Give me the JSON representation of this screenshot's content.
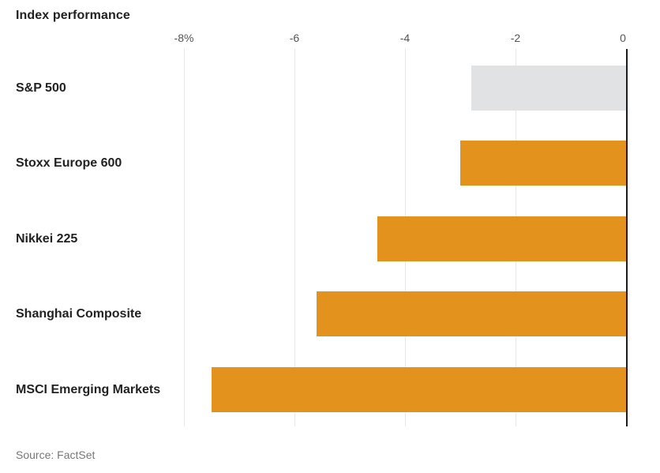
{
  "title": "Index performance",
  "source": "Source: FactSet",
  "colors": {
    "orange_bar": "#e3921e",
    "gray_bar": "#e1e2e4",
    "zero_line": "#1c1c1c",
    "gridline": "#e8e8ea",
    "text_dark": "#222222",
    "text_axis": "#555555",
    "text_source": "#777777"
  },
  "chart_data": {
    "type": "bar",
    "orientation": "horizontal",
    "title": "Index performance",
    "xlabel": "",
    "ylabel": "",
    "unit": "%",
    "xlim": [
      -8,
      0
    ],
    "grid": true,
    "categories": [
      "S&P 500",
      "Stoxx Europe 600",
      "Nikkei 225",
      "Shanghai Composite",
      "MSCI Emerging Markets"
    ],
    "values": [
      -2.8,
      -3.0,
      -4.5,
      -5.6,
      -7.5
    ],
    "bar_colors": [
      "#e1e2e4",
      "#e3921e",
      "#e3921e",
      "#e3921e",
      "#e3921e"
    ],
    "x_ticks": [
      {
        "value": -8,
        "label": "-8%"
      },
      {
        "value": -6,
        "label": "-6"
      },
      {
        "value": -4,
        "label": "-4"
      },
      {
        "value": -2,
        "label": "-2"
      },
      {
        "value": 0,
        "label": "0"
      }
    ]
  }
}
